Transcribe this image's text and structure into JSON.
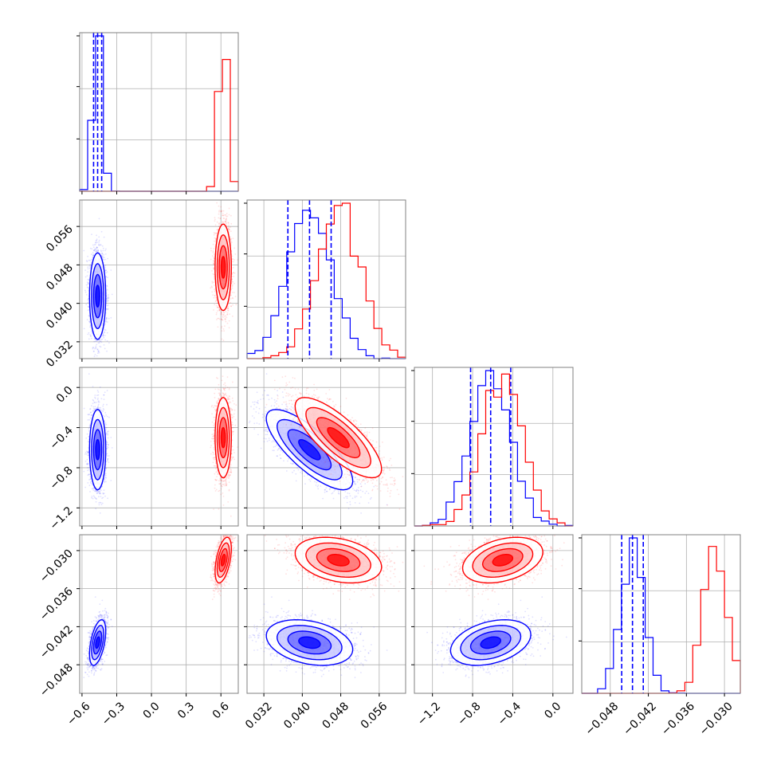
{
  "chart_data": {
    "type": "corner",
    "colors": {
      "series_a": "#0000ff",
      "series_b": "#ff0000",
      "grid": "#b0b0b0",
      "frame": "#808080"
    },
    "grid": true,
    "parameters": [
      {
        "range": [
          -0.62,
          0.75
        ],
        "ticks": [
          -0.6,
          -0.3,
          0.0,
          0.3,
          0.6
        ],
        "tick_labels": [
          "−0.6",
          "−0.3",
          "0.0",
          "0.3",
          "0.6"
        ]
      },
      {
        "range": [
          0.0285,
          0.0615
        ],
        "ticks": [
          0.032,
          0.04,
          0.048,
          0.056
        ],
        "tick_labels": [
          "0.032",
          "0.040",
          "0.048",
          "0.056"
        ]
      },
      {
        "range": [
          -1.38,
          0.2
        ],
        "ticks": [
          -1.2,
          -0.8,
          -0.4,
          0.0
        ],
        "tick_labels": [
          "−1.2",
          "−0.8",
          "−0.4",
          "0.0"
        ]
      },
      {
        "range": [
          -0.0525,
          -0.0275
        ],
        "ticks": [
          -0.048,
          -0.042,
          -0.036,
          -0.03
        ],
        "tick_labels": [
          "−0.048",
          "−0.042",
          "−0.036",
          "−0.030"
        ]
      }
    ],
    "series": [
      {
        "name": "",
        "color": "#0000ff",
        "mean": [
          -0.465,
          0.0415,
          -0.62,
          -0.0445
        ],
        "sd": [
          0.035,
          0.0045,
          0.2,
          0.0018
        ],
        "corr": [
          [
            1,
            0,
            0,
            0.5
          ],
          [
            0,
            1,
            -0.78,
            -0.3
          ],
          [
            0,
            -0.78,
            1,
            0.35
          ],
          [
            0.5,
            -0.3,
            0.35,
            1
          ]
        ],
        "quantiles": [
          [
            -0.5,
            -0.465,
            -0.43
          ],
          [
            0.037,
            0.0415,
            0.046
          ],
          [
            -0.82,
            -0.62,
            -0.42
          ],
          [
            -0.0462,
            -0.0445,
            -0.0428
          ]
        ]
      },
      {
        "name": "",
        "color": "#ff0000",
        "mean": [
          0.62,
          0.0475,
          -0.5,
          -0.0315
        ],
        "sd": [
          0.035,
          0.0045,
          0.2,
          0.0018
        ],
        "corr": [
          [
            1,
            0,
            0,
            0.5
          ],
          [
            0,
            1,
            -0.78,
            -0.3
          ],
          [
            0,
            -0.78,
            1,
            0.35
          ],
          [
            0.5,
            -0.3,
            0.35,
            1
          ]
        ]
      }
    ]
  }
}
